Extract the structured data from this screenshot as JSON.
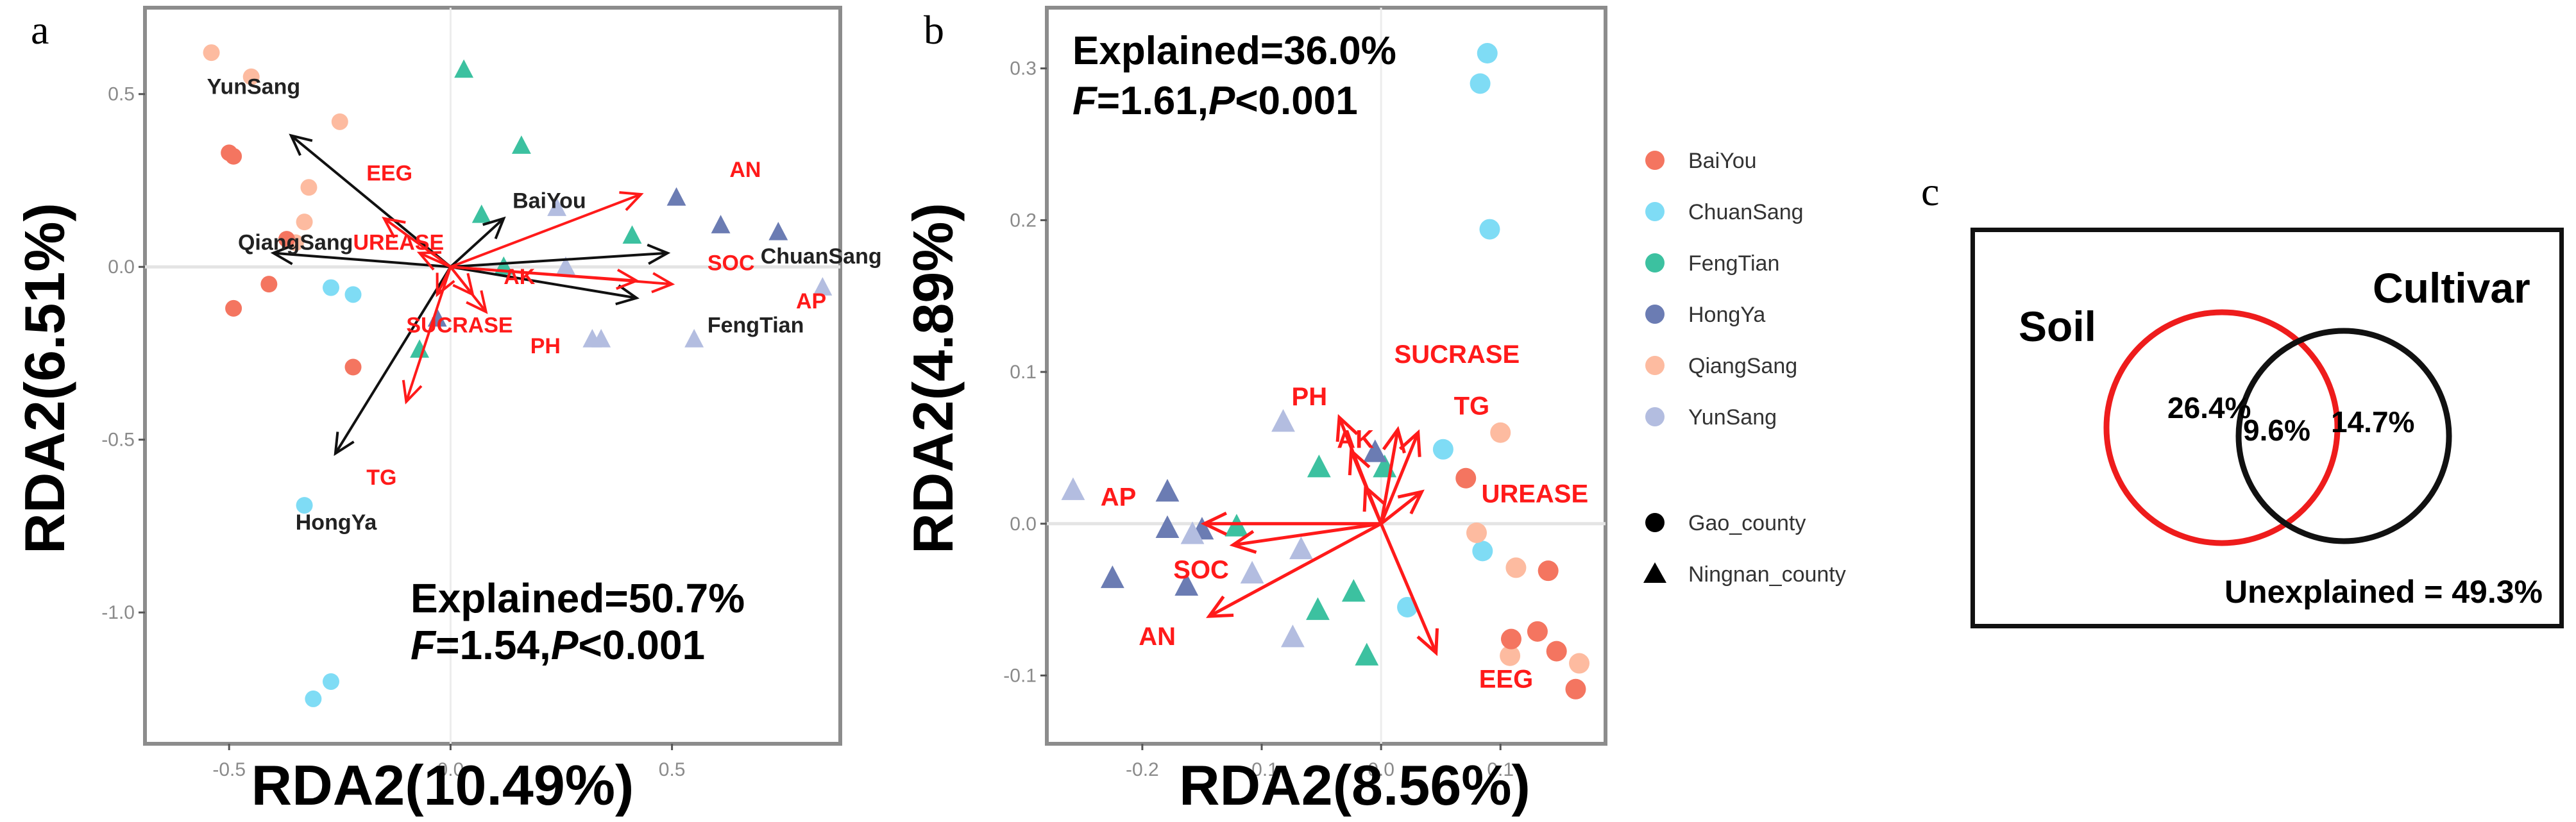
{
  "panels": {
    "a": {
      "letter": "a"
    },
    "b": {
      "letter": "b"
    },
    "c": {
      "letter": "c"
    }
  },
  "colors": {
    "BaiYou": "#f47560",
    "ChuanSang": "#7fdcf5",
    "FengTian": "#3cc1a0",
    "HongYa": "#6b7cb3",
    "QiangSang": "#fdbba0",
    "YunSang": "#b3bde0",
    "env_arrow": "#ff1a1a",
    "cultivar_arrow": "#111111"
  },
  "chart_data": [
    {
      "id": "a",
      "type": "scatter",
      "subtype": "rda-biplot",
      "xlabel": "RDA2(10.49%)",
      "ylabel": "RDA2(6.51%)",
      "xlim": [
        -0.69,
        0.88
      ],
      "ylim": [
        -1.38,
        0.75
      ],
      "xticks": [
        -0.5,
        0.0,
        0.5
      ],
      "xtick_labels": [
        "-0.5",
        "0.0",
        "0.5"
      ],
      "yticks": [
        0.5,
        0.0,
        -0.5,
        -1.0
      ],
      "ytick_labels": [
        "0.5",
        "0.0",
        "-0.5",
        "-1.0"
      ],
      "grid": "zero-lines",
      "annotation": {
        "line1": "Explained=50.7%",
        "line2_f": "F",
        "line2_rest": "=1.54,",
        "line2_p": "P",
        "line2_end": "<0.001"
      },
      "series": [
        {
          "name": "QiangSang",
          "shape": "circle",
          "points": [
            [
              -0.54,
              0.62
            ],
            [
              -0.45,
              0.55
            ],
            [
              -0.25,
              0.42
            ],
            [
              -0.32,
              0.23
            ],
            [
              -0.33,
              0.13
            ],
            [
              -0.35,
              0.07
            ]
          ]
        },
        {
          "name": "BaiYou",
          "shape": "circle",
          "points": [
            [
              -0.5,
              0.33
            ],
            [
              -0.49,
              0.32
            ],
            [
              -0.37,
              0.08
            ],
            [
              -0.41,
              -0.05
            ],
            [
              -0.49,
              -0.12
            ],
            [
              -0.22,
              -0.29
            ]
          ]
        },
        {
          "name": "ChuanSang",
          "shape": "circle",
          "points": [
            [
              -0.27,
              -0.06
            ],
            [
              -0.22,
              -0.08
            ],
            [
              -0.33,
              -0.69
            ],
            [
              -0.27,
              -1.2
            ],
            [
              -0.31,
              -1.25
            ]
          ]
        },
        {
          "name": "FengTian",
          "shape": "triangle",
          "points": [
            [
              0.03,
              0.57
            ],
            [
              0.16,
              0.35
            ],
            [
              0.41,
              0.09
            ],
            [
              0.07,
              0.15
            ],
            [
              -0.07,
              -0.24
            ],
            [
              0.12,
              0.0
            ]
          ]
        },
        {
          "name": "HongYa",
          "shape": "triangle",
          "points": [
            [
              0.51,
              0.2
            ],
            [
              0.61,
              0.12
            ],
            [
              0.74,
              0.1
            ],
            [
              -0.03,
              -0.15
            ]
          ]
        },
        {
          "name": "YunSang",
          "shape": "triangle",
          "points": [
            [
              0.24,
              0.17
            ],
            [
              0.26,
              0.0
            ],
            [
              0.84,
              -0.06
            ],
            [
              0.32,
              -0.21
            ],
            [
              0.34,
              -0.21
            ],
            [
              0.55,
              -0.21
            ]
          ]
        }
      ],
      "env_arrows": [
        {
          "label": "AN",
          "tip": [
            0.43,
            0.21
          ],
          "label_pos": [
            0.63,
            0.26
          ]
        },
        {
          "label": "SOC",
          "tip": [
            0.5,
            -0.05
          ],
          "label_pos": [
            0.58,
            -0.01
          ]
        },
        {
          "label": "AP",
          "tip": [
            0.42,
            -0.04
          ],
          "label_pos": [
            0.78,
            -0.12
          ]
        },
        {
          "label": "AK",
          "tip": [
            0.08,
            -0.13
          ],
          "label_pos": [
            0.12,
            -0.05
          ]
        },
        {
          "label": "PH",
          "tip": [
            0.05,
            -0.08
          ],
          "label_pos": [
            0.18,
            -0.25
          ]
        },
        {
          "label": "SUCRASE",
          "tip": [
            -0.03,
            -0.08
          ],
          "label_pos": [
            -0.1,
            -0.19
          ]
        },
        {
          "label": "TG",
          "tip": [
            -0.1,
            -0.39
          ],
          "label_pos": [
            -0.19,
            -0.63
          ]
        },
        {
          "label": "UREASE",
          "tip": [
            -0.15,
            0.14
          ],
          "label_pos": [
            -0.22,
            0.05
          ]
        },
        {
          "label": "EEG",
          "tip": [
            -0.07,
            0.04
          ],
          "label_pos": [
            -0.19,
            0.25
          ]
        }
      ],
      "cultivar_arrows": [
        {
          "label": "YunSang",
          "tip": [
            -0.36,
            0.38
          ],
          "label_pos": [
            -0.55,
            0.5
          ]
        },
        {
          "label": "QiangSang",
          "tip": [
            -0.4,
            0.04
          ],
          "label_pos": [
            -0.48,
            0.05
          ]
        },
        {
          "label": "BaiYou",
          "tip": [
            0.12,
            0.14
          ],
          "label_pos": [
            0.14,
            0.17
          ]
        },
        {
          "label": "ChuanSang",
          "tip": [
            0.49,
            0.04
          ],
          "label_pos": [
            0.7,
            0.01
          ]
        },
        {
          "label": "FengTian",
          "tip": [
            0.42,
            -0.09
          ],
          "label_pos": [
            0.58,
            -0.19
          ]
        },
        {
          "label": "HongYa",
          "tip": [
            -0.26,
            -0.54
          ],
          "label_pos": [
            -0.35,
            -0.76
          ]
        }
      ]
    },
    {
      "id": "b",
      "type": "scatter",
      "subtype": "rda-biplot",
      "xlabel": "RDA2(8.56%)",
      "ylabel": "RDA2(4.89%)",
      "xlim": [
        -0.28,
        0.188
      ],
      "ylim": [
        -0.145,
        0.34
      ],
      "xticks": [
        -0.2,
        -0.1,
        0.0,
        0.1
      ],
      "xtick_labels": [
        "-0.2",
        "-0.1",
        "0.0",
        "0.1"
      ],
      "yticks": [
        0.3,
        0.2,
        0.1,
        0.0,
        -0.1
      ],
      "ytick_labels": [
        "0.3",
        "0.2",
        "0.1",
        "0.0",
        "-0.1"
      ],
      "grid": "zero-lines",
      "annotation": {
        "line1": "Explained=36.0%",
        "line2_f": "F",
        "line2_rest": "=1.61,",
        "line2_p": "P",
        "line2_end": "<0.001"
      },
      "series": [
        {
          "name": "ChuanSang",
          "shape": "circle",
          "points": [
            [
              0.089,
              0.31
            ],
            [
              0.083,
              0.29
            ],
            [
              0.091,
              0.194
            ],
            [
              0.052,
              0.049
            ],
            [
              0.085,
              -0.018
            ],
            [
              0.022,
              -0.055
            ]
          ]
        },
        {
          "name": "QiangSang",
          "shape": "circle",
          "points": [
            [
              0.1,
              0.06
            ],
            [
              0.08,
              -0.006
            ],
            [
              0.113,
              -0.029
            ],
            [
              0.108,
              -0.087
            ],
            [
              0.166,
              -0.092
            ]
          ]
        },
        {
          "name": "BaiYou",
          "shape": "circle",
          "points": [
            [
              0.071,
              0.03
            ],
            [
              0.14,
              -0.031
            ],
            [
              0.109,
              -0.076
            ],
            [
              0.131,
              -0.071
            ],
            [
              0.147,
              -0.084
            ],
            [
              0.163,
              -0.109
            ]
          ]
        },
        {
          "name": "FengTian",
          "shape": "triangle",
          "points": [
            [
              -0.052,
              0.037
            ],
            [
              0.003,
              0.037
            ],
            [
              -0.121,
              -0.002
            ],
            [
              -0.023,
              -0.045
            ],
            [
              -0.053,
              -0.057
            ],
            [
              -0.012,
              -0.087
            ]
          ]
        },
        {
          "name": "HongYa",
          "shape": "triangle",
          "points": [
            [
              -0.179,
              0.021
            ],
            [
              -0.179,
              -0.003
            ],
            [
              -0.15,
              -0.004
            ],
            [
              -0.225,
              -0.036
            ],
            [
              -0.163,
              -0.041
            ],
            [
              -0.005,
              0.047
            ]
          ]
        },
        {
          "name": "YunSang",
          "shape": "triangle",
          "points": [
            [
              -0.258,
              0.022
            ],
            [
              -0.082,
              0.067
            ],
            [
              -0.158,
              -0.007
            ],
            [
              -0.067,
              -0.017
            ],
            [
              -0.108,
              -0.033
            ],
            [
              -0.074,
              -0.075
            ]
          ]
        }
      ],
      "env_arrows": [
        {
          "label": "AP",
          "tip": [
            -0.148,
            0.0
          ],
          "label_pos": [
            -0.235,
            0.012
          ]
        },
        {
          "label": "SOC",
          "tip": [
            -0.124,
            -0.014
          ],
          "label_pos": [
            -0.174,
            -0.036
          ]
        },
        {
          "label": "AN",
          "tip": [
            -0.144,
            -0.061
          ],
          "label_pos": [
            -0.203,
            -0.08
          ]
        },
        {
          "label": "EEG",
          "tip": [
            0.046,
            -0.085
          ],
          "label_pos": [
            0.082,
            -0.108
          ]
        },
        {
          "label": "AK",
          "tip": [
            -0.025,
            0.048
          ],
          "label_pos": [
            -0.037,
            0.05
          ]
        },
        {
          "label": "PH",
          "tip": [
            -0.035,
            0.07
          ],
          "label_pos": [
            -0.075,
            0.078
          ]
        },
        {
          "label": "SUCRASE",
          "tip": [
            0.014,
            0.062
          ],
          "label_pos": [
            0.011,
            0.106
          ]
        },
        {
          "label": "TG",
          "tip": [
            0.031,
            0.06
          ],
          "label_pos": [
            0.061,
            0.072
          ]
        },
        {
          "label": "UREASE",
          "tip": [
            0.034,
            0.021
          ],
          "label_pos": [
            0.084,
            0.014
          ]
        },
        {
          "label": "",
          "tip": [
            -0.013,
            0.024
          ],
          "label_pos": null
        }
      ],
      "legend": {
        "placement": "right",
        "cultivars": [
          "BaiYou",
          "ChuanSang",
          "FengTian",
          "HongYa",
          "QiangSang",
          "YunSang"
        ],
        "sites": [
          {
            "label": "Gao_county",
            "shape": "circle"
          },
          {
            "label": "Ningnan_county",
            "shape": "triangle"
          }
        ]
      }
    },
    {
      "id": "c",
      "type": "venn",
      "sets": [
        {
          "name": "Soil",
          "unique_pct": 26.4,
          "label": "26.4%",
          "color": "#ee1c1c"
        },
        {
          "name": "Cultivar",
          "unique_pct": 14.7,
          "label": "14.7%",
          "color": "#111111"
        }
      ],
      "intersection": {
        "pct": 9.6,
        "label": "9.6%"
      },
      "unexplained": {
        "pct": 49.3,
        "label": "Unexplained = 49.3%"
      }
    }
  ]
}
